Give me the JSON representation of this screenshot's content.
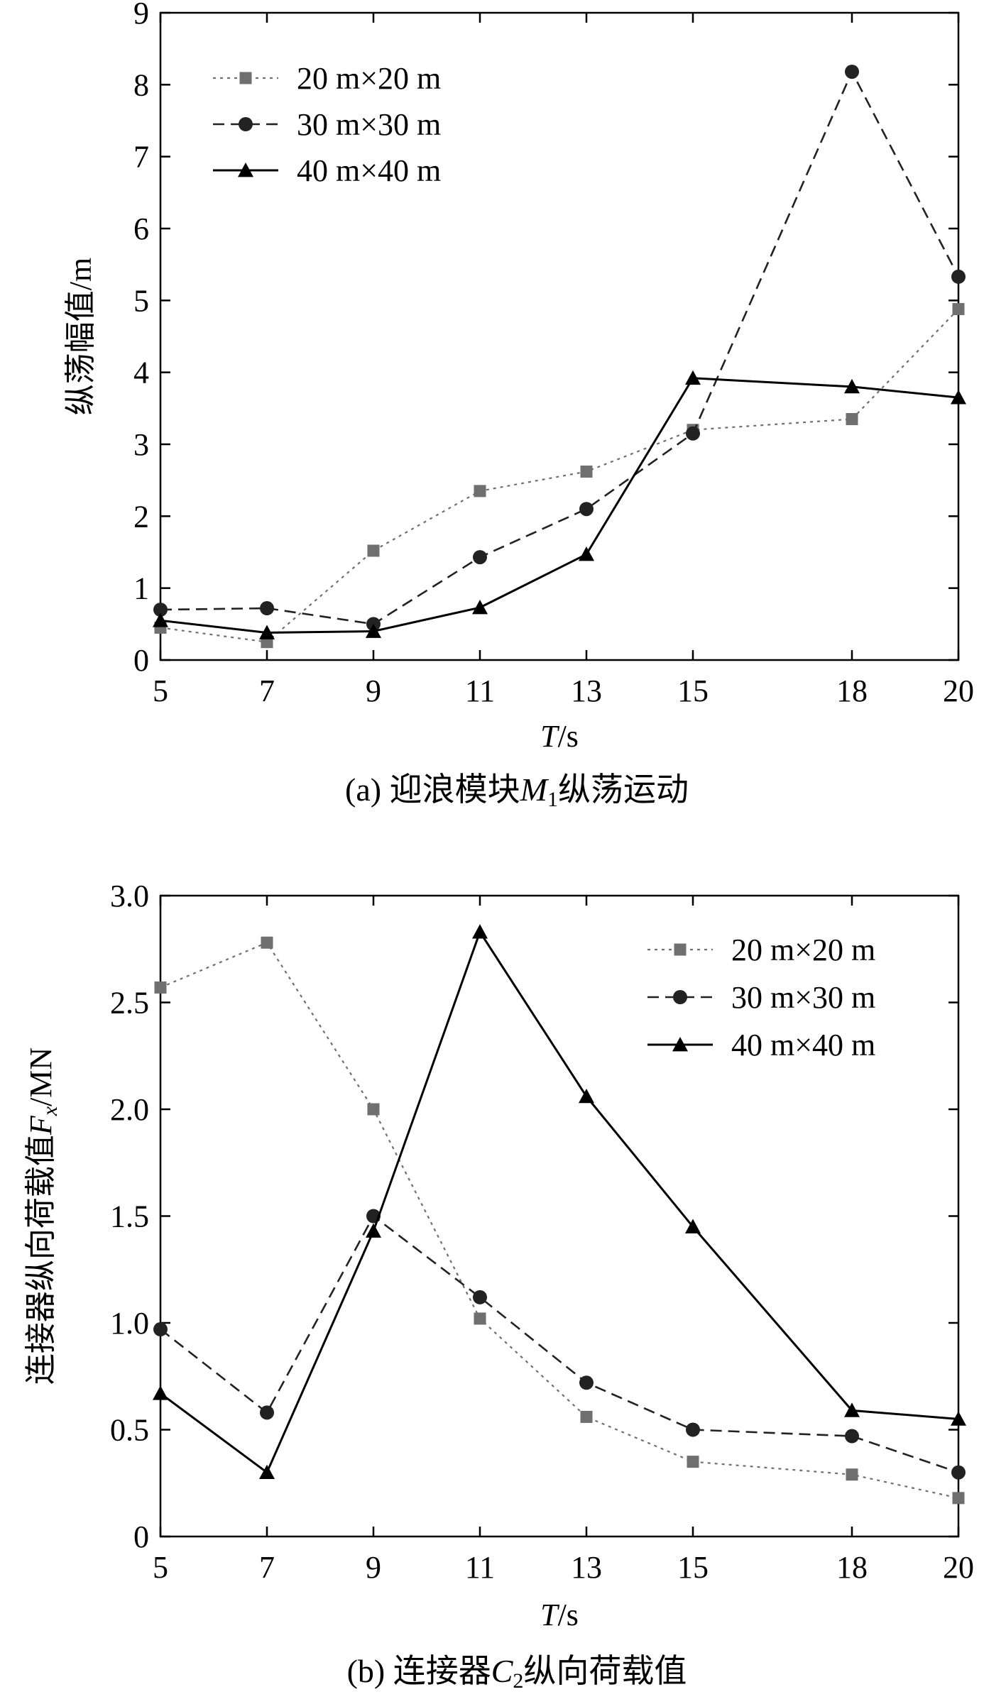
{
  "chart_data": [
    {
      "type": "line",
      "caption": {
        "prefix": "(a) 迎浪模块",
        "var": "M",
        "sub": "1",
        "suffix": "纵荡运动"
      },
      "ylabel": "纵荡幅值/m",
      "xlabel": {
        "var": "T",
        "unit": "/s"
      },
      "categories": [
        "5",
        "7",
        "9",
        "11",
        "13",
        "15",
        "18",
        "20"
      ],
      "yticks": [
        "0",
        "1",
        "2",
        "3",
        "4",
        "5",
        "6",
        "7",
        "8",
        "9"
      ],
      "ylim": [
        0,
        9
      ],
      "legend_position": "top-left",
      "series": [
        {
          "name": "20 m×20 m",
          "style": "dotted",
          "marker": "square",
          "color": "#6f6f6f",
          "values": [
            0.45,
            0.25,
            1.52,
            2.35,
            2.62,
            3.2,
            3.35,
            4.88
          ]
        },
        {
          "name": "30 m×30 m",
          "style": "dashed",
          "marker": "circle",
          "color": "#222222",
          "values": [
            0.7,
            0.72,
            0.5,
            1.43,
            2.1,
            3.15,
            8.18,
            5.33
          ]
        },
        {
          "name": "40 m×40 m",
          "style": "solid",
          "marker": "triangle",
          "color": "#000000",
          "values": [
            0.55,
            0.38,
            0.4,
            0.73,
            1.47,
            3.92,
            3.8,
            3.65
          ]
        }
      ]
    },
    {
      "type": "line",
      "caption": {
        "prefix": "(b) 连接器",
        "var": "C",
        "sub": "2",
        "suffix": "纵向荷载值"
      },
      "ylabel": {
        "text": "连接器纵向荷载值",
        "var": "F",
        "sub": "x",
        "unit": "/MN"
      },
      "xlabel": {
        "var": "T",
        "unit": "/s"
      },
      "categories": [
        "5",
        "7",
        "9",
        "11",
        "13",
        "15",
        "18",
        "20"
      ],
      "yticks": [
        "0",
        "0.5",
        "1.0",
        "1.5",
        "2.0",
        "2.5",
        "3.0"
      ],
      "ylim": [
        0,
        3.0
      ],
      "legend_position": "top-right",
      "series": [
        {
          "name": "20 m×20 m",
          "style": "dotted",
          "marker": "square",
          "color": "#6f6f6f",
          "values": [
            2.57,
            2.78,
            2.0,
            1.02,
            0.56,
            0.35,
            0.29,
            0.18
          ]
        },
        {
          "name": "30 m×30 m",
          "style": "dashed",
          "marker": "circle",
          "color": "#222222",
          "values": [
            0.97,
            0.58,
            1.5,
            1.12,
            0.72,
            0.5,
            0.47,
            0.3
          ]
        },
        {
          "name": "40 m×40 m",
          "style": "solid",
          "marker": "triangle",
          "color": "#000000",
          "values": [
            0.67,
            0.3,
            1.43,
            2.83,
            2.06,
            1.45,
            0.59,
            0.55
          ]
        }
      ]
    }
  ]
}
